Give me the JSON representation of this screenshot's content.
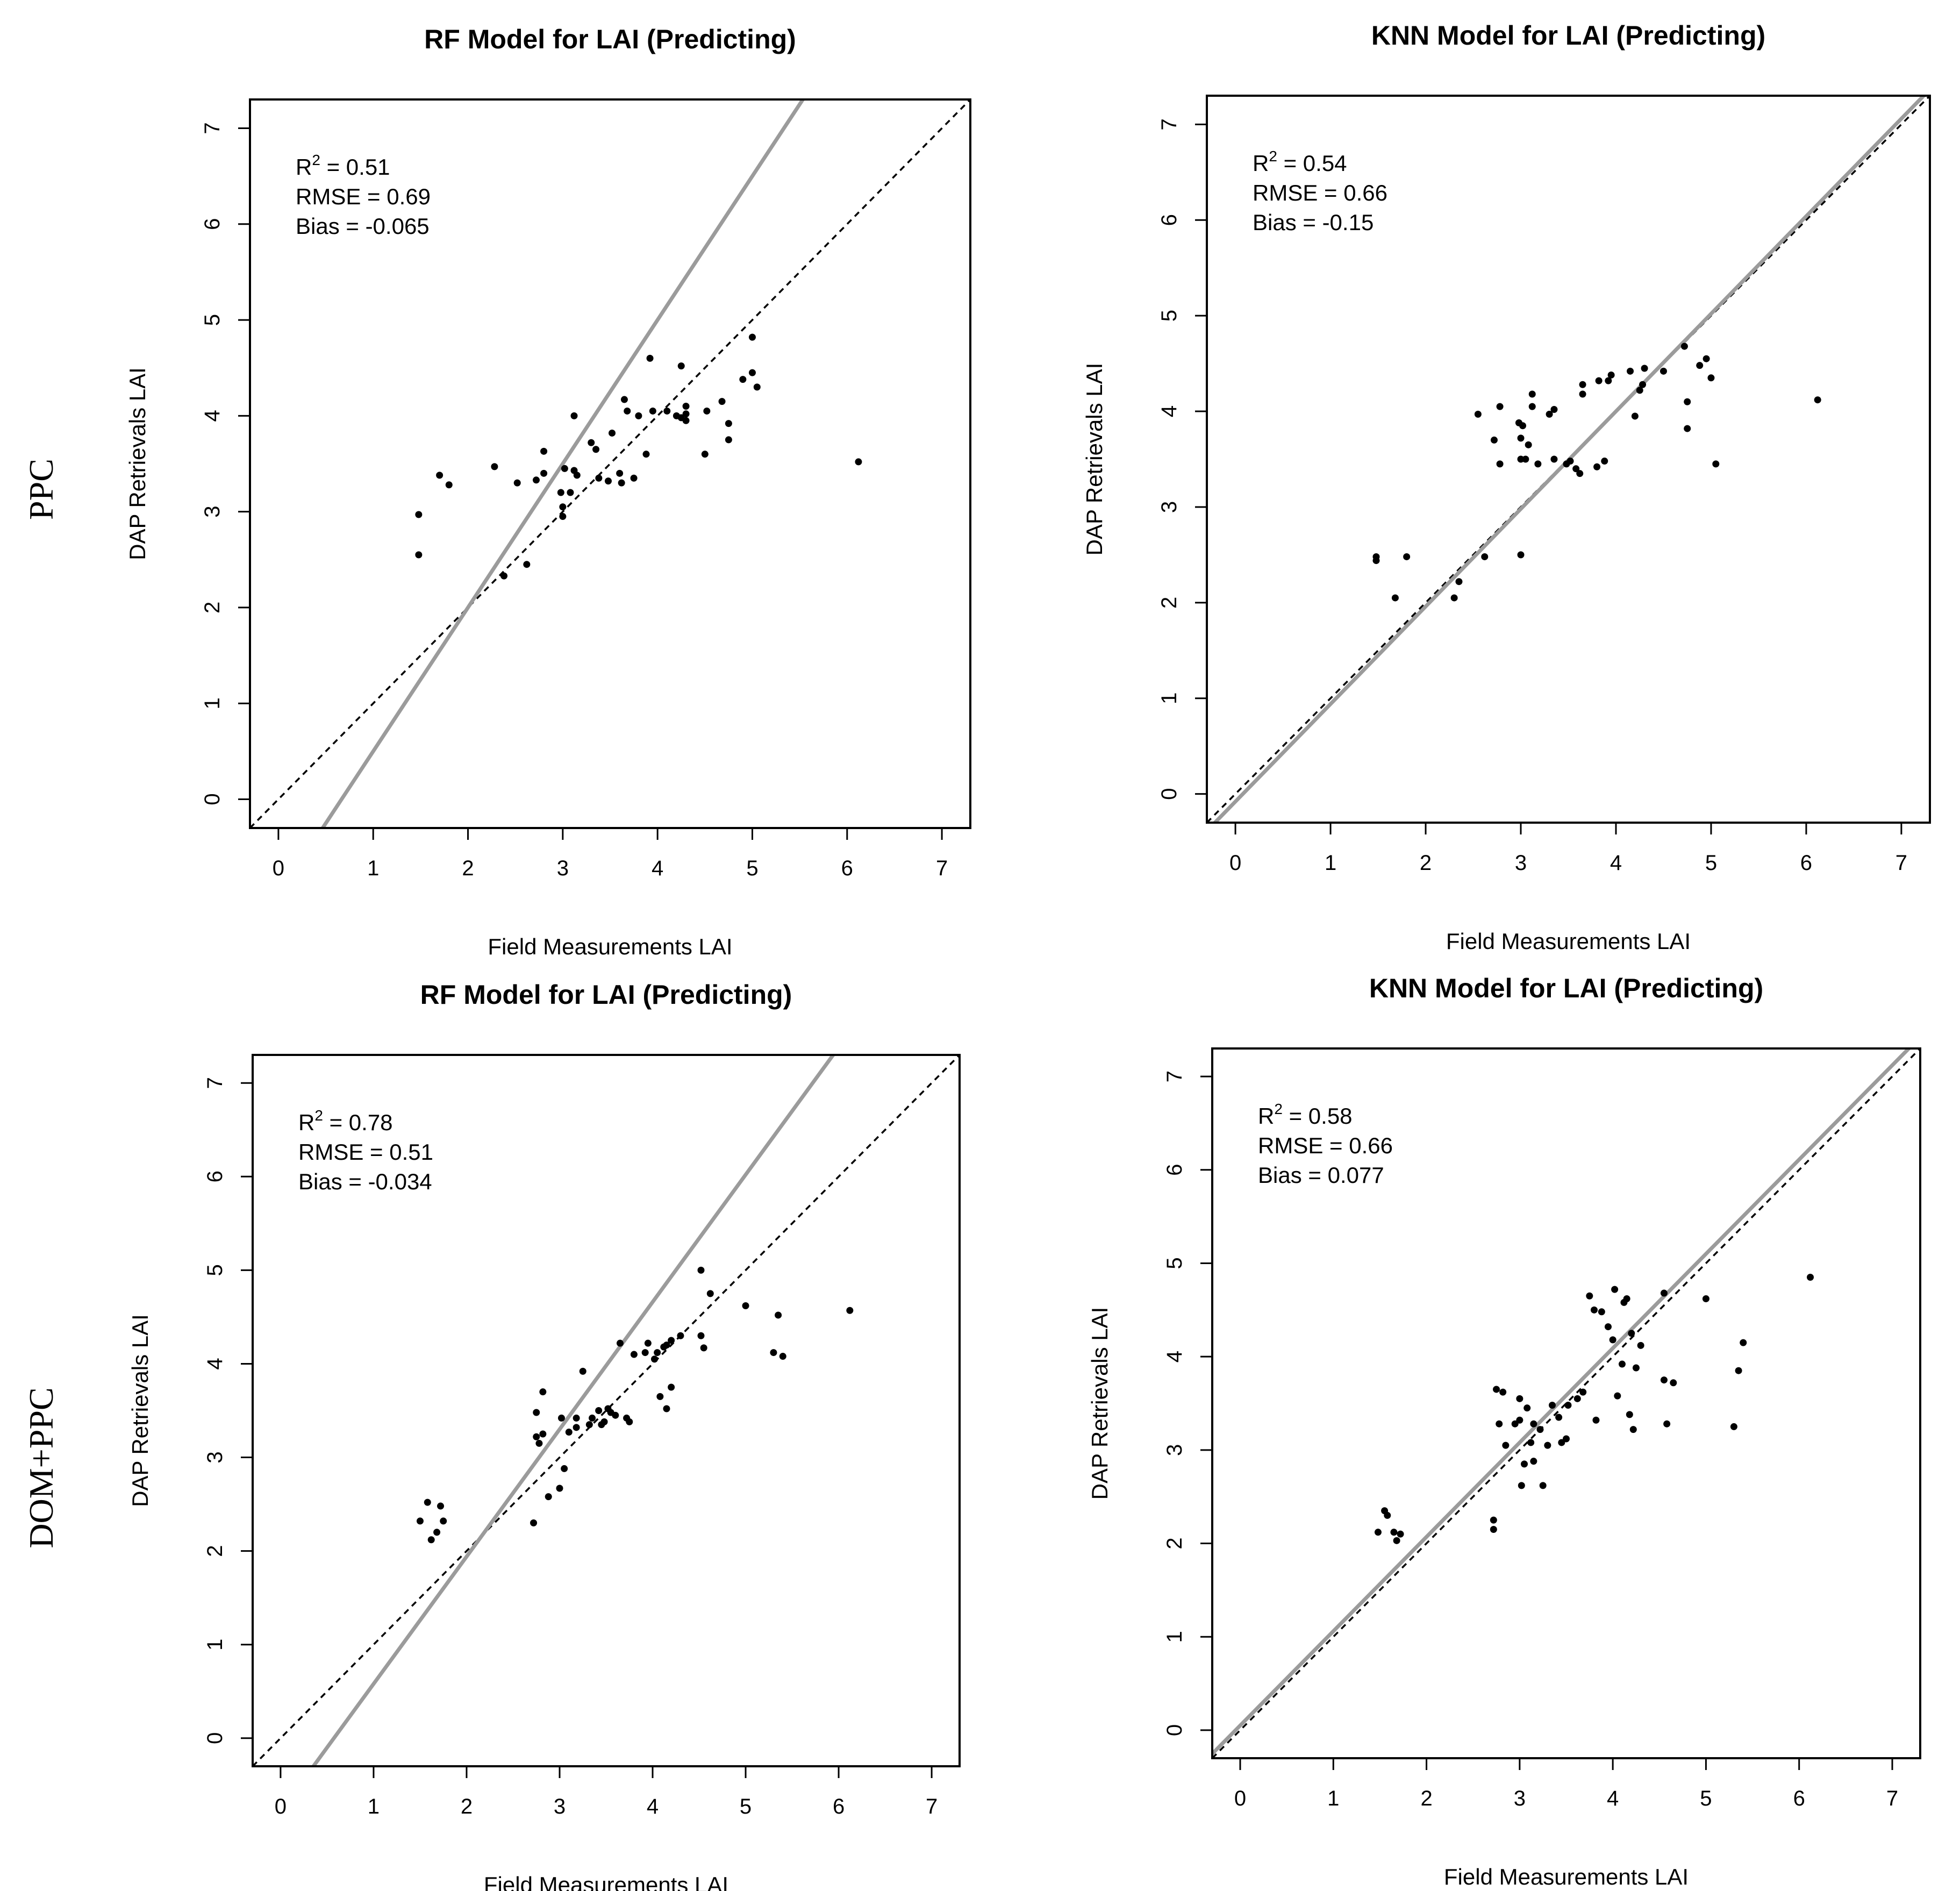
{
  "row_labels": [
    "PPC",
    "DOM+PPC"
  ],
  "chart_data": [
    {
      "type": "scatter",
      "title": "RF Model for LAI (Predicting)",
      "xlabel": "Field Measurements LAI",
      "ylabel": "DAP Retrievals LAI",
      "xlim": [
        -0.3,
        7.3
      ],
      "ylim": [
        -0.3,
        7.3
      ],
      "xticks": [
        "0",
        "1",
        "2",
        "3",
        "4",
        "5",
        "6",
        "7"
      ],
      "yticks": [
        "0",
        "1",
        "2",
        "3",
        "4",
        "5",
        "6",
        "7"
      ],
      "stats": {
        "r2_label": "R",
        "r2_sup": "2",
        "r2_value": " = 0.51",
        "rmse": "RMSE = 0.69",
        "bias": "Bias = -0.065"
      },
      "reference_line": {
        "slope": 1,
        "intercept": 0
      },
      "fit_line": {
        "slope": 1.5,
        "intercept": -1.0
      },
      "points": [
        [
          1.48,
          2.97
        ],
        [
          1.48,
          2.55
        ],
        [
          1.7,
          3.38
        ],
        [
          1.8,
          3.28
        ],
        [
          2.28,
          3.47
        ],
        [
          2.38,
          2.33
        ],
        [
          2.52,
          3.3
        ],
        [
          2.62,
          2.45
        ],
        [
          2.72,
          3.33
        ],
        [
          2.8,
          3.4
        ],
        [
          2.8,
          3.63
        ],
        [
          2.98,
          3.2
        ],
        [
          3.0,
          3.05
        ],
        [
          3.0,
          2.95
        ],
        [
          3.02,
          3.45
        ],
        [
          3.08,
          3.2
        ],
        [
          3.12,
          3.43
        ],
        [
          3.12,
          4.0
        ],
        [
          3.15,
          3.38
        ],
        [
          3.3,
          3.72
        ],
        [
          3.35,
          3.65
        ],
        [
          3.38,
          3.35
        ],
        [
          3.48,
          3.32
        ],
        [
          3.52,
          3.82
        ],
        [
          3.6,
          3.4
        ],
        [
          3.62,
          3.3
        ],
        [
          3.65,
          4.17
        ],
        [
          3.68,
          4.05
        ],
        [
          3.75,
          3.35
        ],
        [
          3.8,
          4.0
        ],
        [
          3.88,
          3.6
        ],
        [
          3.92,
          4.6
        ],
        [
          3.95,
          4.05
        ],
        [
          4.1,
          4.05
        ],
        [
          4.2,
          4.0
        ],
        [
          4.25,
          4.52
        ],
        [
          4.25,
          3.98
        ],
        [
          4.3,
          4.1
        ],
        [
          4.3,
          4.02
        ],
        [
          4.3,
          3.95
        ],
        [
          4.5,
          3.6
        ],
        [
          4.52,
          4.05
        ],
        [
          4.68,
          4.15
        ],
        [
          4.75,
          3.92
        ],
        [
          4.75,
          3.75
        ],
        [
          4.9,
          4.38
        ],
        [
          5.0,
          4.45
        ],
        [
          5.0,
          4.82
        ],
        [
          5.05,
          4.3
        ],
        [
          6.12,
          3.52
        ]
      ]
    },
    {
      "type": "scatter",
      "title": "KNN Model for LAI (Predicting)",
      "xlabel": "Field Measurements LAI",
      "ylabel": "DAP Retrievals LAI",
      "xlim": [
        -0.3,
        7.3
      ],
      "ylim": [
        -0.3,
        7.3
      ],
      "xticks": [
        "0",
        "1",
        "2",
        "3",
        "4",
        "5",
        "6",
        "7"
      ],
      "yticks": [
        "0",
        "1",
        "2",
        "3",
        "4",
        "5",
        "6",
        "7"
      ],
      "stats": {
        "r2_label": "R",
        "r2_sup": "2",
        "r2_value": " = 0.54",
        "rmse": "RMSE = 0.66",
        "bias": "Bias = -0.15"
      },
      "reference_line": {
        "slope": 1,
        "intercept": 0
      },
      "fit_line": {
        "slope": 1.02,
        "intercept": -0.08
      },
      "points": [
        [
          1.48,
          2.48
        ],
        [
          1.48,
          2.44
        ],
        [
          1.68,
          2.05
        ],
        [
          1.8,
          2.48
        ],
        [
          2.3,
          2.05
        ],
        [
          2.35,
          2.22
        ],
        [
          2.55,
          3.97
        ],
        [
          2.62,
          2.48
        ],
        [
          2.72,
          3.7
        ],
        [
          2.78,
          4.05
        ],
        [
          2.78,
          3.45
        ],
        [
          2.98,
          3.88
        ],
        [
          3.0,
          3.5
        ],
        [
          3.0,
          3.72
        ],
        [
          3.0,
          2.5
        ],
        [
          3.02,
          3.85
        ],
        [
          3.05,
          3.5
        ],
        [
          3.08,
          3.65
        ],
        [
          3.12,
          4.05
        ],
        [
          3.12,
          4.18
        ],
        [
          3.18,
          3.45
        ],
        [
          3.3,
          3.97
        ],
        [
          3.35,
          4.02
        ],
        [
          3.35,
          3.5
        ],
        [
          3.48,
          3.45
        ],
        [
          3.52,
          3.48
        ],
        [
          3.58,
          3.4
        ],
        [
          3.62,
          3.35
        ],
        [
          3.65,
          4.28
        ],
        [
          3.65,
          4.18
        ],
        [
          3.8,
          3.42
        ],
        [
          3.82,
          4.32
        ],
        [
          3.88,
          3.48
        ],
        [
          3.92,
          4.32
        ],
        [
          3.95,
          4.38
        ],
        [
          4.15,
          4.42
        ],
        [
          4.2,
          3.95
        ],
        [
          4.25,
          4.22
        ],
        [
          4.28,
          4.28
        ],
        [
          4.3,
          4.45
        ],
        [
          4.5,
          4.42
        ],
        [
          4.72,
          4.68
        ],
        [
          4.75,
          4.1
        ],
        [
          4.75,
          3.82
        ],
        [
          4.88,
          4.48
        ],
        [
          4.95,
          4.55
        ],
        [
          5.0,
          4.35
        ],
        [
          5.05,
          3.45
        ],
        [
          6.12,
          4.12
        ]
      ]
    },
    {
      "type": "scatter",
      "title": "RF Model for LAI (Predicting)",
      "xlabel": "Field Measurements LAI",
      "ylabel": "DAP Retrievals LAI",
      "xlim": [
        -0.3,
        7.3
      ],
      "ylim": [
        -0.3,
        7.3
      ],
      "xticks": [
        "0",
        "1",
        "2",
        "3",
        "4",
        "5",
        "6",
        "7"
      ],
      "yticks": [
        "0",
        "1",
        "2",
        "3",
        "4",
        "5",
        "6",
        "7"
      ],
      "stats": {
        "r2_label": "R",
        "r2_sup": "2",
        "r2_value": " = 0.78",
        "rmse": "RMSE = 0.51",
        "bias": "Bias = -0.034"
      },
      "reference_line": {
        "slope": 1,
        "intercept": 0
      },
      "fit_line": {
        "slope": 1.36,
        "intercept": -0.78
      },
      "points": [
        [
          1.5,
          2.32
        ],
        [
          1.58,
          2.52
        ],
        [
          1.62,
          2.12
        ],
        [
          1.68,
          2.2
        ],
        [
          1.72,
          2.48
        ],
        [
          1.75,
          2.32
        ],
        [
          2.72,
          2.3
        ],
        [
          2.75,
          3.48
        ],
        [
          2.75,
          3.22
        ],
        [
          2.78,
          3.15
        ],
        [
          2.82,
          3.7
        ],
        [
          2.82,
          3.25
        ],
        [
          2.88,
          2.58
        ],
        [
          3.0,
          2.67
        ],
        [
          3.02,
          3.42
        ],
        [
          3.05,
          2.88
        ],
        [
          3.1,
          3.27
        ],
        [
          3.18,
          3.32
        ],
        [
          3.18,
          3.42
        ],
        [
          3.25,
          3.92
        ],
        [
          3.32,
          3.35
        ],
        [
          3.35,
          3.42
        ],
        [
          3.42,
          3.5
        ],
        [
          3.45,
          3.35
        ],
        [
          3.48,
          3.38
        ],
        [
          3.52,
          3.52
        ],
        [
          3.55,
          3.48
        ],
        [
          3.6,
          3.45
        ],
        [
          3.65,
          4.22
        ],
        [
          3.72,
          3.42
        ],
        [
          3.75,
          3.38
        ],
        [
          3.8,
          4.1
        ],
        [
          3.92,
          4.12
        ],
        [
          3.95,
          4.22
        ],
        [
          4.02,
          4.05
        ],
        [
          4.05,
          4.12
        ],
        [
          4.08,
          3.65
        ],
        [
          4.12,
          4.18
        ],
        [
          4.15,
          4.2
        ],
        [
          4.15,
          3.52
        ],
        [
          4.2,
          4.25
        ],
        [
          4.2,
          3.75
        ],
        [
          4.3,
          4.3
        ],
        [
          4.52,
          5.0
        ],
        [
          4.52,
          4.3
        ],
        [
          4.55,
          4.17
        ],
        [
          4.62,
          4.75
        ],
        [
          5.0,
          4.62
        ],
        [
          5.3,
          4.12
        ],
        [
          5.35,
          4.52
        ],
        [
          5.4,
          4.08
        ],
        [
          6.12,
          4.57
        ]
      ]
    },
    {
      "type": "scatter",
      "title": "KNN Model for LAI (Predicting)",
      "xlabel": "Field Measurements LAI",
      "ylabel": "DAP Retrievals LAI",
      "xlim": [
        -0.3,
        7.3
      ],
      "ylim": [
        -0.3,
        7.3
      ],
      "xticks": [
        "0",
        "1",
        "2",
        "3",
        "4",
        "5",
        "6",
        "7"
      ],
      "yticks": [
        "0",
        "1",
        "2",
        "3",
        "4",
        "5",
        "6",
        "7"
      ],
      "stats": {
        "r2_label": "R",
        "r2_sup": "2",
        "r2_value": " = 0.58",
        "rmse": "RMSE = 0.66",
        "bias": "Bias = 0.077"
      },
      "reference_line": {
        "slope": 1,
        "intercept": 0
      },
      "fit_line": {
        "slope": 1.01,
        "intercept": 0.05
      },
      "points": [
        [
          1.48,
          2.12
        ],
        [
          1.55,
          2.35
        ],
        [
          1.58,
          2.3
        ],
        [
          1.65,
          2.12
        ],
        [
          1.68,
          2.03
        ],
        [
          1.72,
          2.1
        ],
        [
          2.72,
          2.25
        ],
        [
          2.72,
          2.15
        ],
        [
          2.75,
          3.65
        ],
        [
          2.78,
          3.28
        ],
        [
          2.82,
          3.62
        ],
        [
          2.85,
          3.05
        ],
        [
          2.95,
          3.28
        ],
        [
          3.0,
          3.55
        ],
        [
          3.0,
          3.32
        ],
        [
          3.02,
          2.62
        ],
        [
          3.05,
          2.85
        ],
        [
          3.08,
          3.45
        ],
        [
          3.12,
          3.08
        ],
        [
          3.15,
          3.28
        ],
        [
          3.15,
          2.88
        ],
        [
          3.22,
          3.22
        ],
        [
          3.25,
          2.62
        ],
        [
          3.3,
          3.05
        ],
        [
          3.35,
          3.48
        ],
        [
          3.42,
          3.35
        ],
        [
          3.45,
          3.08
        ],
        [
          3.5,
          3.12
        ],
        [
          3.52,
          3.48
        ],
        [
          3.62,
          3.55
        ],
        [
          3.68,
          3.62
        ],
        [
          3.75,
          4.65
        ],
        [
          3.8,
          4.5
        ],
        [
          3.82,
          3.32
        ],
        [
          3.88,
          4.48
        ],
        [
          3.95,
          4.32
        ],
        [
          4.0,
          4.18
        ],
        [
          4.02,
          4.72
        ],
        [
          4.05,
          3.58
        ],
        [
          4.1,
          3.92
        ],
        [
          4.12,
          4.58
        ],
        [
          4.15,
          4.62
        ],
        [
          4.18,
          3.38
        ],
        [
          4.2,
          4.25
        ],
        [
          4.22,
          3.22
        ],
        [
          4.25,
          3.88
        ],
        [
          4.3,
          4.12
        ],
        [
          4.55,
          4.68
        ],
        [
          4.55,
          3.75
        ],
        [
          4.58,
          3.28
        ],
        [
          4.65,
          3.72
        ],
        [
          5.0,
          4.62
        ],
        [
          5.3,
          3.25
        ],
        [
          5.35,
          3.85
        ],
        [
          5.4,
          4.15
        ],
        [
          6.12,
          4.85
        ]
      ]
    }
  ]
}
